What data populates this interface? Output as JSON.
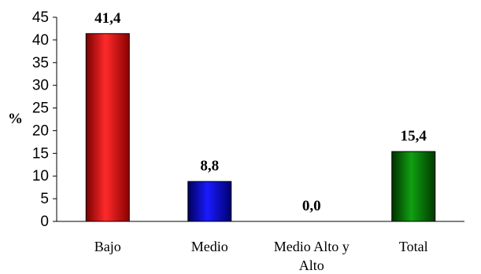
{
  "chart_data": {
    "type": "bar",
    "ylabel": "%",
    "xlabel": "",
    "ylim": [
      0,
      45
    ],
    "yticks": [
      0,
      5,
      10,
      15,
      20,
      25,
      30,
      35,
      40,
      45
    ],
    "categories": [
      "Bajo",
      "Medio",
      "Medio Alto y Alto",
      "Total"
    ],
    "category_lines": [
      [
        "Bajo"
      ],
      [
        "Medio"
      ],
      [
        "Medio Alto y",
        "Alto"
      ],
      [
        "Total"
      ]
    ],
    "values": [
      41.4,
      8.8,
      0.0,
      15.4
    ],
    "data_labels": [
      "41,4",
      "8,8",
      "0,0",
      "15,4"
    ],
    "colors": [
      "#e00000",
      "#0000d8",
      "#1400c8",
      "#007000"
    ],
    "grid": false,
    "legend": "none"
  }
}
